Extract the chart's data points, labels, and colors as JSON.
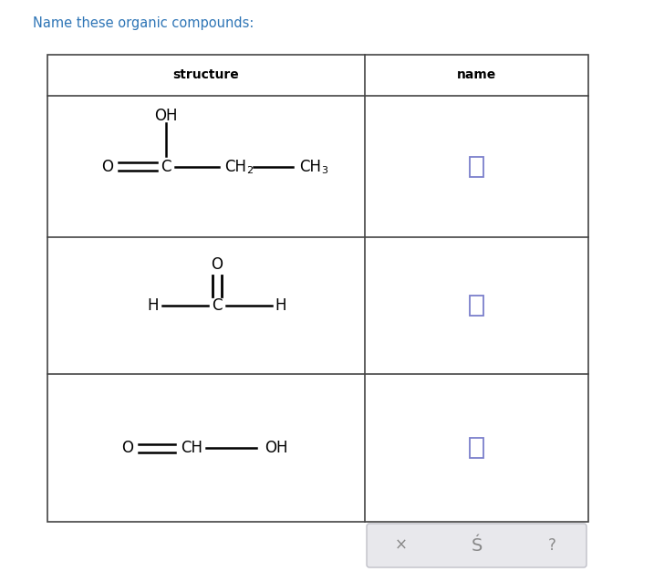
{
  "title": "Name these organic compounds:",
  "title_color": "#2e75b6",
  "title_fontsize": 10.5,
  "background_color": "#ffffff",
  "header": [
    "structure",
    "name"
  ],
  "header_fontsize": 10,
  "checkbox_color": "#7b7fcc",
  "bottom_bar_color": "#e8e8ec",
  "bottom_bar_border": "#c0c0c8",
  "table_line_color": "#444444",
  "symbols_color": "#888888",
  "sym_x": "×",
  "sym_undo": "↵",
  "sym_help": "?"
}
